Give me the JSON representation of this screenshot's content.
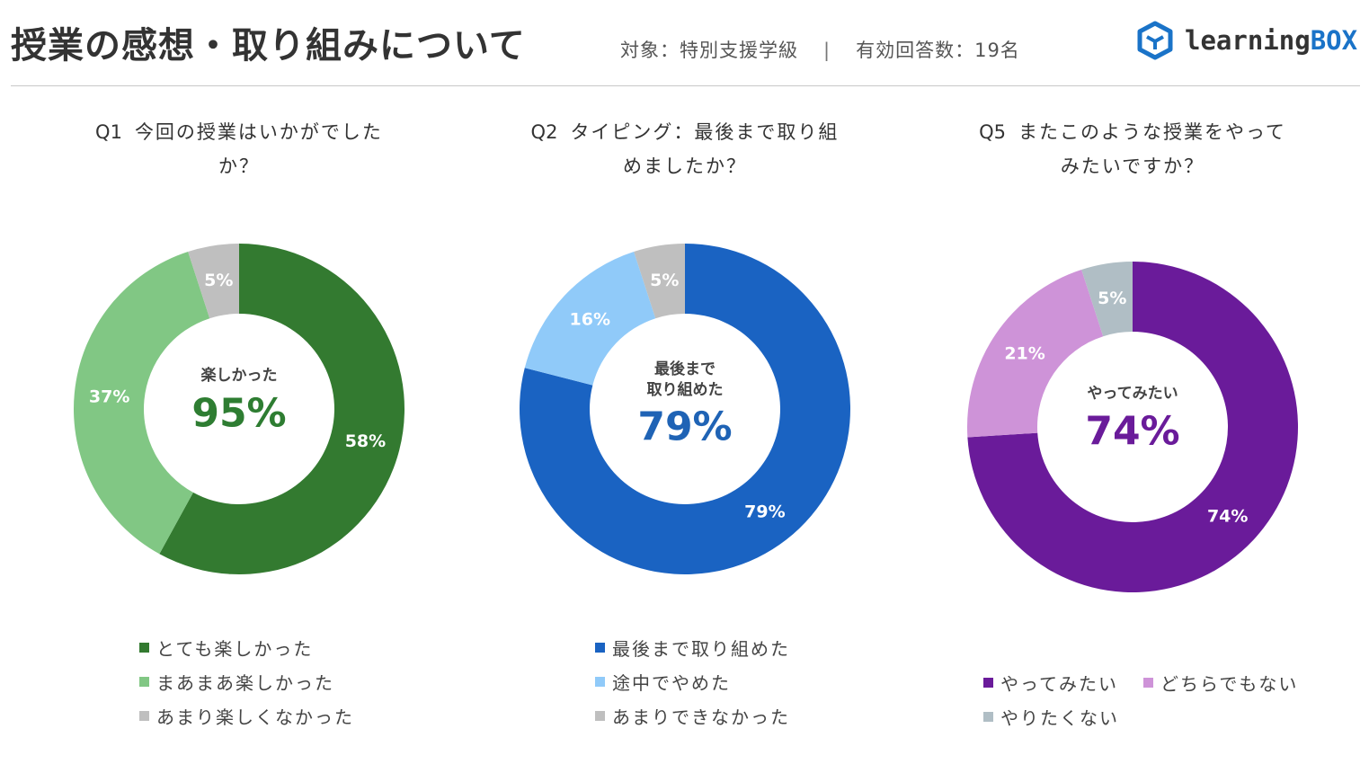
{
  "header": {
    "title": "授業の感想・取り組みについて",
    "target": "対象：特別支援学級",
    "separator": "|",
    "responses": "有効回答数：19名",
    "logo_text_a": "learning",
    "logo_text_b": "BOX",
    "logo_color": "#1a73c8"
  },
  "chart_data": [
    {
      "type": "pie",
      "variant": "donut",
      "title_no": "Q1",
      "title_line1": "今回の授業はいかがでした",
      "title_line2": "か？",
      "center_label": "楽しかった",
      "center_label2": "",
      "center_value": "95%",
      "center_color": "#2e7d32",
      "slices": [
        {
          "name": "とても楽しかった",
          "value": 58,
          "label": "58%",
          "color": "#337a30"
        },
        {
          "name": "まあまあ楽しかった",
          "value": 37,
          "label": "37%",
          "color": "#81c784"
        },
        {
          "name": "あまり楽しくなかった",
          "value": 5,
          "label": "5%",
          "color": "#bfbfbf"
        }
      ]
    },
    {
      "type": "pie",
      "variant": "donut",
      "title_no": "Q2",
      "title_line1": "タイピング：最後まで取り組",
      "title_line2": "めましたか？",
      "center_label": "最後まで",
      "center_label2": "取り組めた",
      "center_value": "79%",
      "center_color": "#1f63b5",
      "slices": [
        {
          "name": "最後まで取り組めた",
          "value": 79,
          "label": "79%",
          "color": "#1a63c2"
        },
        {
          "name": "途中でやめた",
          "value": 16,
          "label": "16%",
          "color": "#90caf9"
        },
        {
          "name": "あまりできなかった",
          "value": 5,
          "label": "5%",
          "color": "#bfbfbf"
        }
      ]
    },
    {
      "type": "pie",
      "variant": "donut",
      "title_no": "Q5",
      "title_line1": "またこのような授業をやって",
      "title_line2": "みたいですか？",
      "center_label": "やってみたい",
      "center_label2": "",
      "center_value": "74%",
      "center_color": "#6a1b9a",
      "slices": [
        {
          "name": "やってみたい",
          "value": 74,
          "label": "74%",
          "color": "#6a1b9a"
        },
        {
          "name": "どちらでもない",
          "value": 21,
          "label": "21%",
          "color": "#ce93d8"
        },
        {
          "name": "やりたくない",
          "value": 5,
          "label": "5%",
          "color": "#b0bec5"
        }
      ]
    }
  ]
}
